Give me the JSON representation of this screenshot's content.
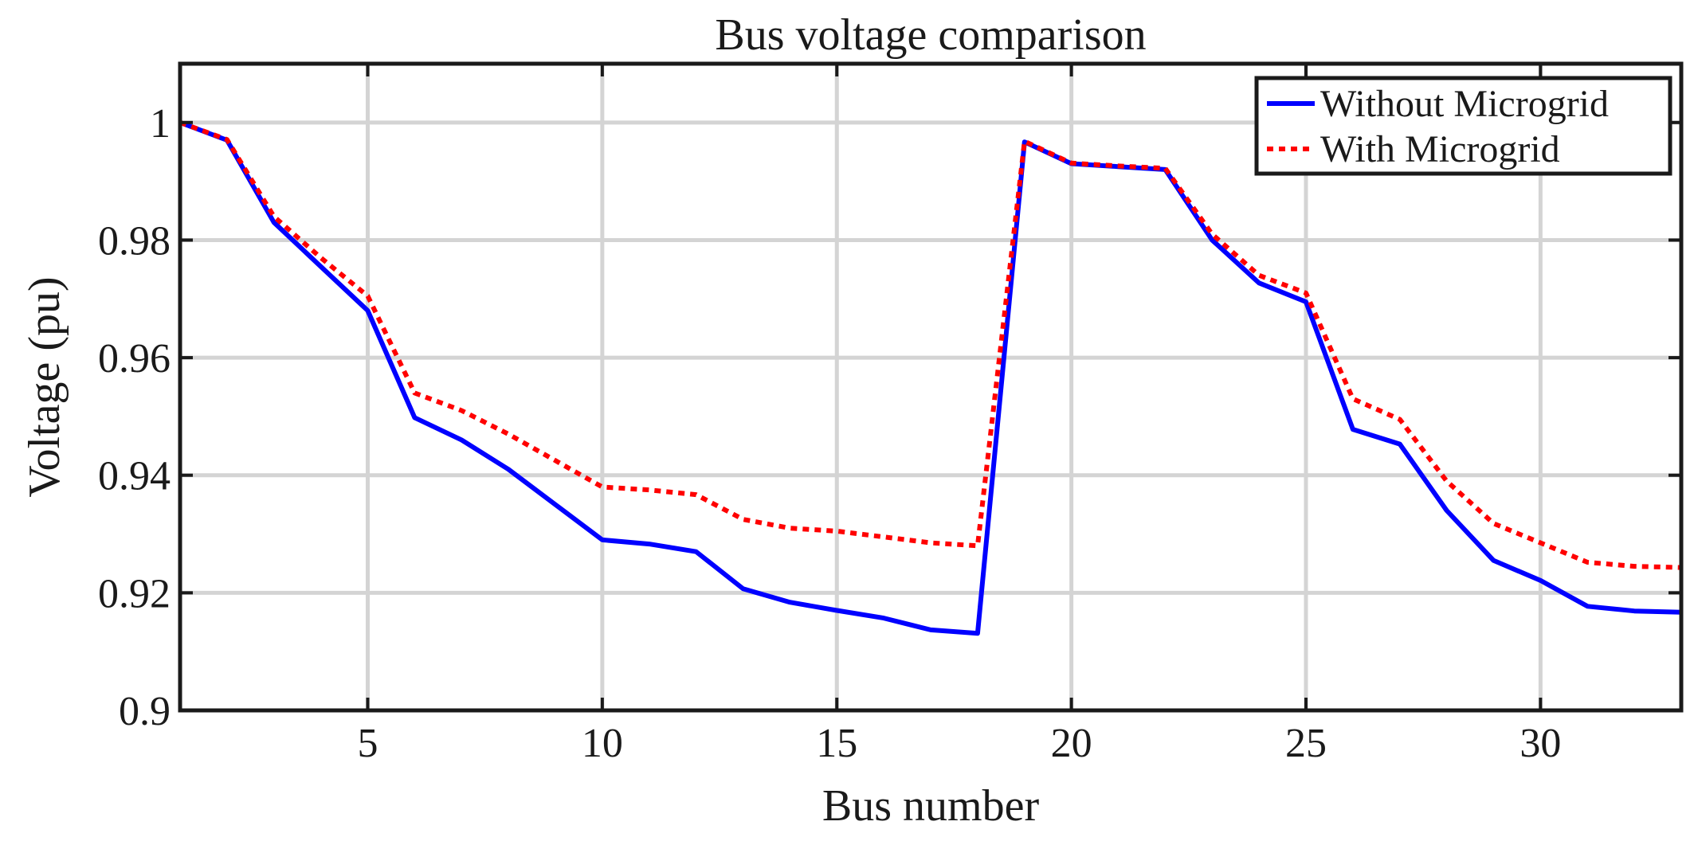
{
  "chart_data": {
    "type": "line",
    "title": "Bus voltage comparison",
    "xlabel": "Bus number",
    "ylabel": "Voltage (pu)",
    "xlim": [
      1,
      33
    ],
    "ylim": [
      0.9,
      1.01
    ],
    "xticks": [
      5,
      10,
      15,
      20,
      25,
      30
    ],
    "xtick_labels": [
      "5",
      "10",
      "15",
      "20",
      "25",
      "30"
    ],
    "yticks": [
      0.9,
      0.92,
      0.94,
      0.96,
      0.98,
      1.0
    ],
    "ytick_labels": [
      "0.9",
      "0.92",
      "0.94",
      "0.96",
      "0.98",
      "1"
    ],
    "grid": true,
    "legend_position": "top-right",
    "x": [
      1,
      2,
      3,
      4,
      5,
      6,
      7,
      8,
      9,
      10,
      11,
      12,
      13,
      14,
      15,
      16,
      17,
      18,
      19,
      20,
      21,
      22,
      23,
      24,
      25,
      26,
      27,
      28,
      29,
      30,
      31,
      32,
      33
    ],
    "series": [
      {
        "name": "Without Microgrid",
        "color": "#0000ff",
        "style": "solid",
        "values": [
          1.0,
          0.997,
          0.983,
          0.9755,
          0.968,
          0.9498,
          0.946,
          0.941,
          0.935,
          0.929,
          0.9283,
          0.927,
          0.9207,
          0.9184,
          0.917,
          0.9157,
          0.9137,
          0.9131,
          0.9967,
          0.993,
          0.9925,
          0.992,
          0.98,
          0.9727,
          0.9695,
          0.9478,
          0.9453,
          0.934,
          0.9255,
          0.9221,
          0.9177,
          0.9169,
          0.9167
        ]
      },
      {
        "name": "With Microgrid",
        "color": "#ff0000",
        "style": "dotted",
        "values": [
          1.0,
          0.9971,
          0.984,
          0.977,
          0.9705,
          0.954,
          0.951,
          0.947,
          0.9425,
          0.938,
          0.9375,
          0.9367,
          0.9325,
          0.931,
          0.9305,
          0.9295,
          0.9285,
          0.928,
          0.9968,
          0.9931,
          0.9926,
          0.9922,
          0.981,
          0.974,
          0.971,
          0.953,
          0.9495,
          0.939,
          0.9318,
          0.9285,
          0.9252,
          0.9245,
          0.9243
        ]
      }
    ]
  }
}
